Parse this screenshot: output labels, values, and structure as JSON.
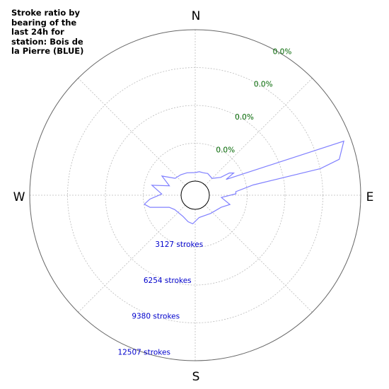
{
  "chart_data": {
    "type": "polar-line",
    "title": "Stroke ratio by\nbearing of the\nlast 24h for\nstation: Bois de\nla Pierre (BLUE)",
    "directions": [
      "N",
      "E",
      "S",
      "W"
    ],
    "radial_range": [
      0,
      12507
    ],
    "stroke_ticks": [
      {
        "value": 3127,
        "label": "3127 strokes"
      },
      {
        "value": 6254,
        "label": "6254 strokes"
      },
      {
        "value": 9380,
        "label": "9380 strokes"
      },
      {
        "value": 12507,
        "label": "12507 strokes"
      }
    ],
    "ratio_ticks": [
      "0.0%",
      "0.0%",
      "0.0%",
      "0.0%"
    ],
    "grid": true,
    "colors": {
      "series": "#8080ff",
      "stroke_labels": "#0000cc",
      "ratio_labels": "#006600",
      "grid": "#bbbbbb",
      "outer_circle": "#666666",
      "inner_circle": "#000000"
    },
    "series": [
      {
        "points": [
          {
            "bearing": 0,
            "strokes": 700
          },
          {
            "bearing": 10,
            "strokes": 800
          },
          {
            "bearing": 20,
            "strokes": 800
          },
          {
            "bearing": 30,
            "strokes": 900
          },
          {
            "bearing": 45,
            "strokes": 800
          },
          {
            "bearing": 55,
            "strokes": 1400
          },
          {
            "bearing": 57,
            "strokes": 2200
          },
          {
            "bearing": 60,
            "strokes": 2500
          },
          {
            "bearing": 63,
            "strokes": 1700
          },
          {
            "bearing": 70,
            "strokes": 11900
          },
          {
            "bearing": 76,
            "strokes": 11100
          },
          {
            "bearing": 78,
            "strokes": 9400
          },
          {
            "bearing": 80,
            "strokes": 3700
          },
          {
            "bearing": 85,
            "strokes": 2200
          },
          {
            "bearing": 88,
            "strokes": 2200
          },
          {
            "bearing": 95,
            "strokes": 1000
          },
          {
            "bearing": 105,
            "strokes": 1800
          },
          {
            "bearing": 115,
            "strokes": 1200
          },
          {
            "bearing": 140,
            "strokes": 800
          },
          {
            "bearing": 170,
            "strokes": 700
          },
          {
            "bearing": 185,
            "strokes": 1200
          },
          {
            "bearing": 195,
            "strokes": 1100
          },
          {
            "bearing": 210,
            "strokes": 850
          },
          {
            "bearing": 235,
            "strokes": 900
          },
          {
            "bearing": 245,
            "strokes": 1200
          },
          {
            "bearing": 255,
            "strokes": 2700
          },
          {
            "bearing": 260,
            "strokes": 3100
          },
          {
            "bearing": 265,
            "strokes": 2600
          },
          {
            "bearing": 272,
            "strokes": 1600
          },
          {
            "bearing": 283,
            "strokes": 2500
          },
          {
            "bearing": 290,
            "strokes": 1100
          },
          {
            "bearing": 300,
            "strokes": 2000
          },
          {
            "bearing": 310,
            "strokes": 1000
          },
          {
            "bearing": 325,
            "strokes": 900
          },
          {
            "bearing": 340,
            "strokes": 800
          }
        ]
      }
    ]
  }
}
